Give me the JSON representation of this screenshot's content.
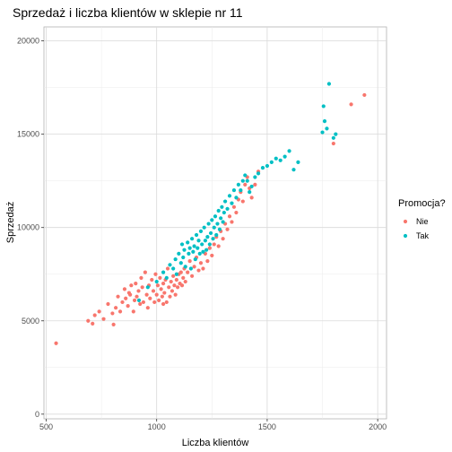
{
  "chart_data": {
    "type": "scatter",
    "title": "Sprzedaż i liczba klientów w sklepie nr 11",
    "xlabel": "Liczba klientów",
    "ylabel": "Sprzedaż",
    "xlim": [
      490,
      2040
    ],
    "ylim": [
      -250,
      20750
    ],
    "x_ticks": [
      500,
      1000,
      1500,
      2000
    ],
    "y_ticks": [
      0,
      5000,
      10000,
      15000,
      20000
    ],
    "x_tick_labels": [
      "500",
      "1000",
      "1500",
      "2000"
    ],
    "y_tick_labels": [
      "0",
      "5000",
      "10000",
      "15000",
      "20000"
    ],
    "grid": true,
    "legend": {
      "title": "Promocja?",
      "position": "right",
      "entries": [
        {
          "label": "Nie",
          "color": "#F8766D"
        },
        {
          "label": "Tak",
          "color": "#00BFC4"
        }
      ]
    },
    "series": [
      {
        "name": "Nie",
        "color": "#F8766D",
        "points": [
          [
            545,
            3800
          ],
          [
            690,
            5000
          ],
          [
            710,
            4850
          ],
          [
            720,
            5300
          ],
          [
            740,
            5500
          ],
          [
            760,
            5100
          ],
          [
            780,
            5900
          ],
          [
            800,
            5400
          ],
          [
            805,
            4800
          ],
          [
            815,
            5700
          ],
          [
            825,
            6300
          ],
          [
            835,
            5500
          ],
          [
            845,
            6000
          ],
          [
            855,
            6700
          ],
          [
            860,
            6200
          ],
          [
            870,
            5800
          ],
          [
            875,
            6500
          ],
          [
            885,
            6900
          ],
          [
            895,
            5500
          ],
          [
            900,
            6100
          ],
          [
            905,
            7000
          ],
          [
            910,
            6300
          ],
          [
            918,
            6600
          ],
          [
            925,
            5900
          ],
          [
            930,
            7300
          ],
          [
            935,
            6800
          ],
          [
            940,
            6000
          ],
          [
            948,
            7600
          ],
          [
            955,
            6400
          ],
          [
            960,
            5700
          ],
          [
            965,
            6900
          ],
          [
            970,
            6200
          ],
          [
            978,
            7200
          ],
          [
            985,
            6600
          ],
          [
            990,
            6000
          ],
          [
            995,
            7500
          ],
          [
            1000,
            6400
          ],
          [
            1005,
            6900
          ],
          [
            1010,
            6100
          ],
          [
            1015,
            7300
          ],
          [
            1020,
            6700
          ],
          [
            1025,
            6300
          ],
          [
            1030,
            7000
          ],
          [
            1035,
            6500
          ],
          [
            1040,
            7200
          ],
          [
            1045,
            6000
          ],
          [
            1050,
            7800
          ],
          [
            1055,
            6800
          ],
          [
            1060,
            6300
          ],
          [
            1065,
            7100
          ],
          [
            1070,
            6600
          ],
          [
            1075,
            7400
          ],
          [
            1080,
            6900
          ],
          [
            1085,
            6400
          ],
          [
            1090,
            7200
          ],
          [
            1095,
            6800
          ],
          [
            1100,
            7500
          ],
          [
            1105,
            7000
          ],
          [
            1110,
            7600
          ],
          [
            1115,
            6900
          ],
          [
            1120,
            7300
          ],
          [
            1125,
            7800
          ],
          [
            1130,
            7100
          ],
          [
            1140,
            7600
          ],
          [
            1150,
            8200
          ],
          [
            1160,
            7400
          ],
          [
            1170,
            7900
          ],
          [
            1180,
            8400
          ],
          [
            1190,
            7700
          ],
          [
            1200,
            8100
          ],
          [
            1210,
            7800
          ],
          [
            1220,
            8600
          ],
          [
            1230,
            8200
          ],
          [
            1240,
            8900
          ],
          [
            1250,
            8500
          ],
          [
            1260,
            9100
          ],
          [
            1270,
            9500
          ],
          [
            1280,
            9000
          ],
          [
            1290,
            9800
          ],
          [
            1300,
            9400
          ],
          [
            1310,
            10200
          ],
          [
            1320,
            9900
          ],
          [
            1330,
            10600
          ],
          [
            1340,
            10300
          ],
          [
            1350,
            11100
          ],
          [
            1360,
            10800
          ],
          [
            1370,
            11500
          ],
          [
            1380,
            11900
          ],
          [
            1390,
            11400
          ],
          [
            1400,
            12300
          ],
          [
            1410,
            12700
          ],
          [
            1420,
            12100
          ],
          [
            1430,
            11600
          ],
          [
            1445,
            12300
          ],
          [
            1460,
            13000
          ],
          [
            1800,
            14500
          ],
          [
            1880,
            16600
          ],
          [
            1940,
            17100
          ],
          [
            880,
            6400
          ],
          [
            1030,
            5900
          ]
        ]
      },
      {
        "name": "Tak",
        "color": "#00BFC4",
        "points": [
          [
            920,
            6100
          ],
          [
            960,
            6800
          ],
          [
            1000,
            7100
          ],
          [
            1030,
            7600
          ],
          [
            1045,
            7300
          ],
          [
            1060,
            8000
          ],
          [
            1075,
            7800
          ],
          [
            1085,
            8300
          ],
          [
            1090,
            7500
          ],
          [
            1100,
            8600
          ],
          [
            1110,
            8100
          ],
          [
            1115,
            9100
          ],
          [
            1120,
            8400
          ],
          [
            1125,
            8800
          ],
          [
            1130,
            7900
          ],
          [
            1140,
            9200
          ],
          [
            1145,
            8600
          ],
          [
            1150,
            8900
          ],
          [
            1155,
            7800
          ],
          [
            1160,
            9400
          ],
          [
            1165,
            8700
          ],
          [
            1170,
            9000
          ],
          [
            1175,
            8300
          ],
          [
            1180,
            9600
          ],
          [
            1185,
            8900
          ],
          [
            1190,
            9300
          ],
          [
            1195,
            8600
          ],
          [
            1200,
            9800
          ],
          [
            1205,
            9100
          ],
          [
            1210,
            8700
          ],
          [
            1215,
            10000
          ],
          [
            1220,
            9300
          ],
          [
            1225,
            8800
          ],
          [
            1230,
            9500
          ],
          [
            1235,
            10200
          ],
          [
            1240,
            9100
          ],
          [
            1245,
            9700
          ],
          [
            1250,
            10400
          ],
          [
            1255,
            9400
          ],
          [
            1260,
            10000
          ],
          [
            1265,
            10600
          ],
          [
            1270,
            9600
          ],
          [
            1275,
            10200
          ],
          [
            1280,
            10900
          ],
          [
            1285,
            9900
          ],
          [
            1290,
            10500
          ],
          [
            1295,
            11100
          ],
          [
            1300,
            10300
          ],
          [
            1305,
            10800
          ],
          [
            1310,
            11400
          ],
          [
            1320,
            11000
          ],
          [
            1330,
            11700
          ],
          [
            1340,
            11300
          ],
          [
            1350,
            12000
          ],
          [
            1360,
            11600
          ],
          [
            1370,
            12300
          ],
          [
            1380,
            12000
          ],
          [
            1390,
            12500
          ],
          [
            1400,
            12800
          ],
          [
            1410,
            12500
          ],
          [
            1420,
            11900
          ],
          [
            1430,
            12200
          ],
          [
            1445,
            12700
          ],
          [
            1460,
            12900
          ],
          [
            1480,
            13200
          ],
          [
            1500,
            13300
          ],
          [
            1520,
            13500
          ],
          [
            1540,
            13700
          ],
          [
            1560,
            13600
          ],
          [
            1580,
            13800
          ],
          [
            1600,
            14100
          ],
          [
            1620,
            13100
          ],
          [
            1640,
            13500
          ],
          [
            1750,
            15100
          ],
          [
            1755,
            16500
          ],
          [
            1760,
            15700
          ],
          [
            1770,
            15300
          ],
          [
            1780,
            17700
          ],
          [
            1800,
            14800
          ],
          [
            1810,
            15000
          ]
        ]
      }
    ]
  }
}
